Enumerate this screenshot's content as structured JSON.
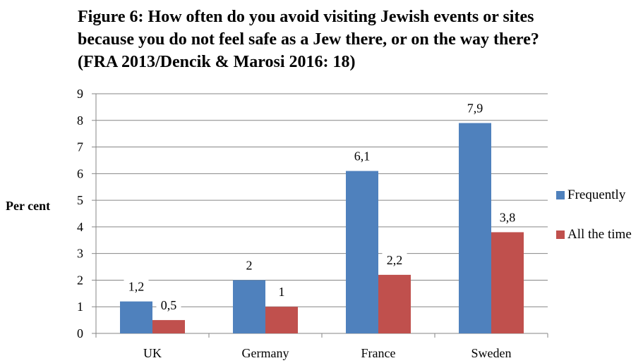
{
  "chart_data": {
    "type": "bar",
    "title": "Figure 6: How often do you avoid visiting Jewish events or sites because you do not feel safe as a Jew there, or on the way there? (FRA 2013/Dencik & Marosi 2016: 18)",
    "xlabel": "",
    "ylabel": "Per cent",
    "ylim": [
      0,
      9
    ],
    "yticks": [
      "0",
      "1",
      "2",
      "3",
      "4",
      "5",
      "6",
      "7",
      "8",
      "9"
    ],
    "grid": true,
    "legend_position": "right",
    "categories": [
      "UK",
      "Germany",
      "France",
      "Sweden"
    ],
    "series": [
      {
        "name": "Frequently",
        "color": "#4F81BD",
        "values": [
          1.2,
          2,
          6.1,
          7.9
        ],
        "labels": [
          "1,2",
          "2",
          "6,1",
          "7,9"
        ]
      },
      {
        "name": "All the time",
        "color": "#C0504D",
        "values": [
          0.5,
          1,
          2.2,
          3.8
        ],
        "labels": [
          "0,5",
          "1",
          "2,2",
          "3,8"
        ]
      }
    ]
  }
}
